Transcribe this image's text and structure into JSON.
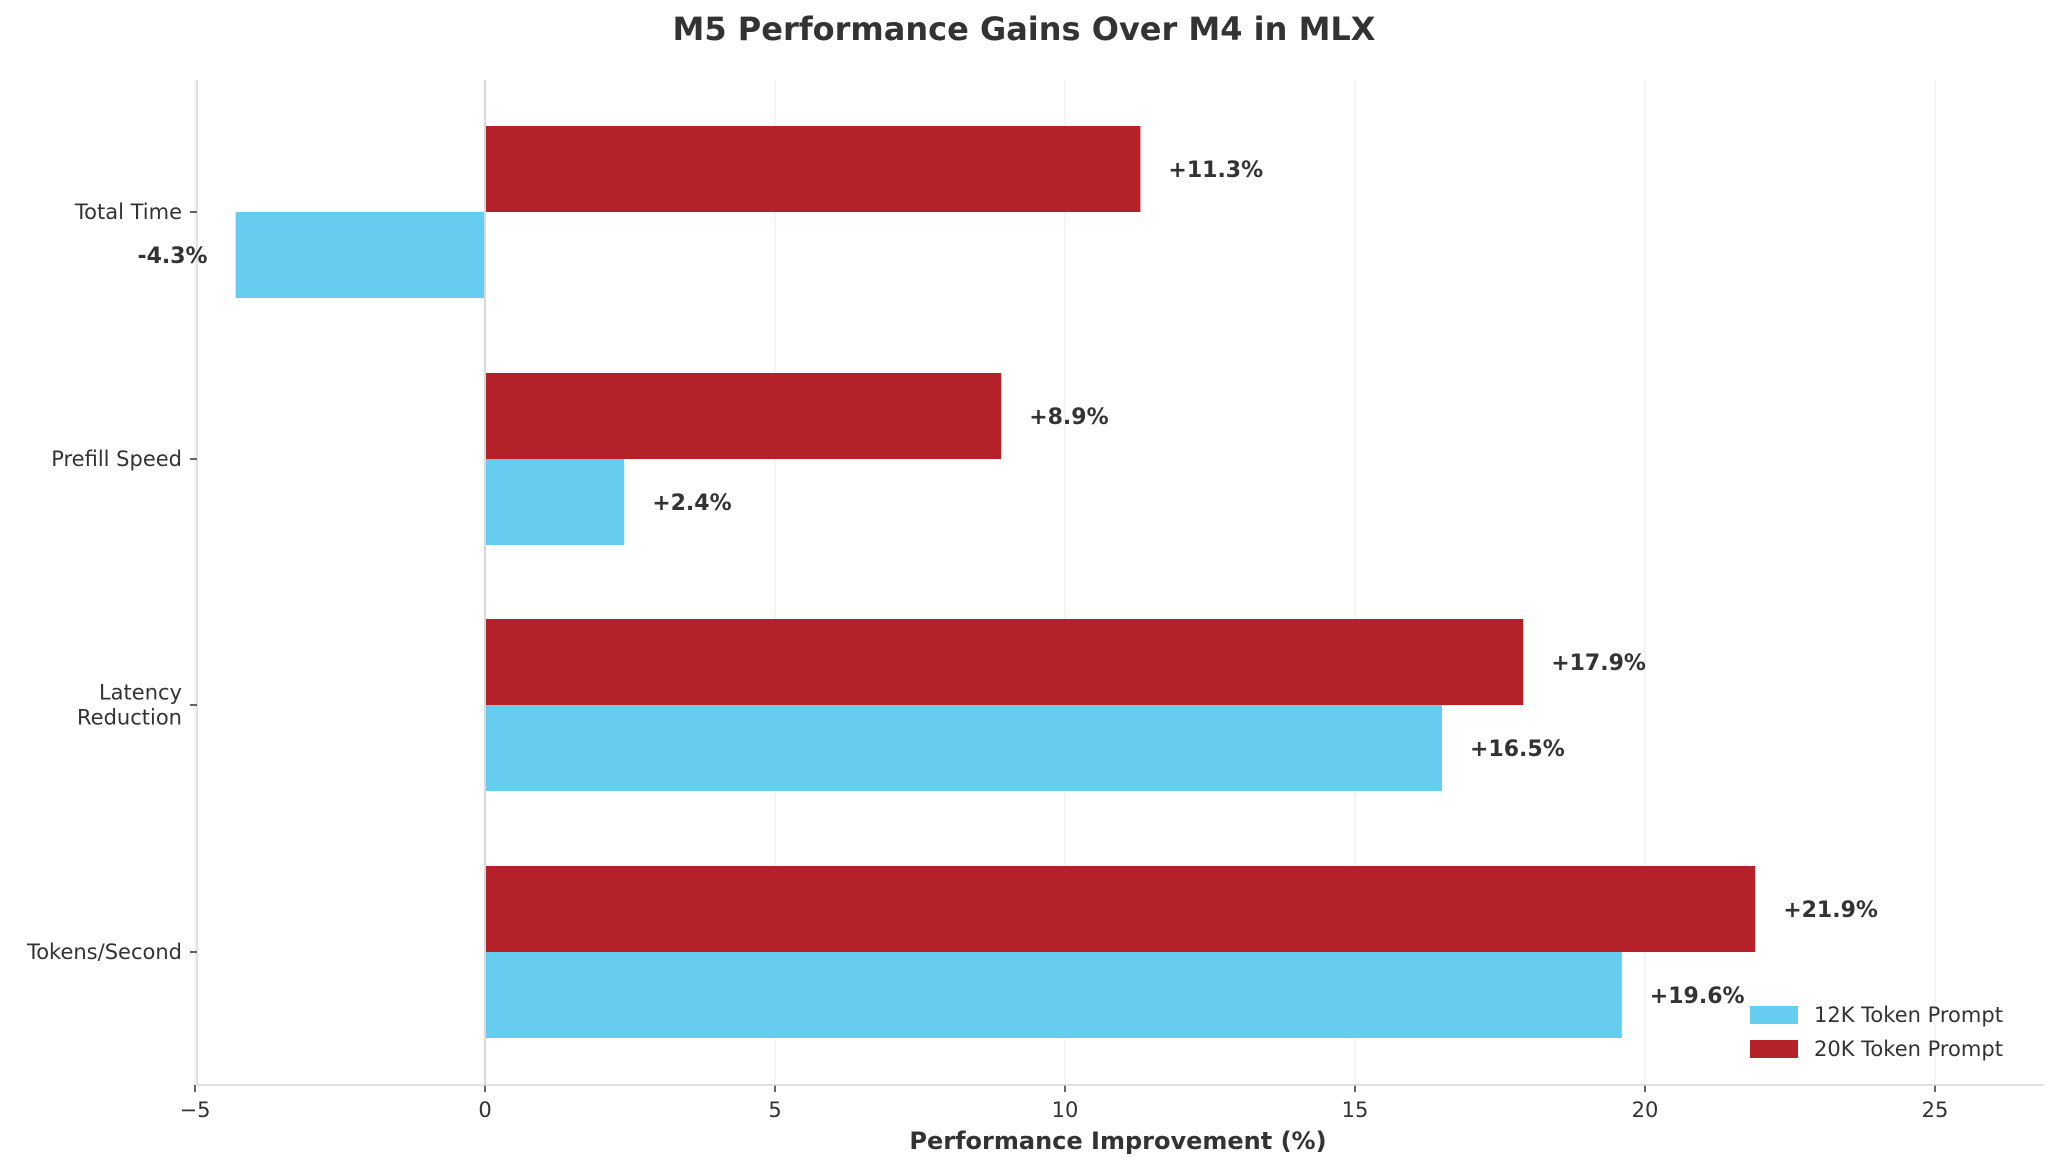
{
  "colors": {
    "series_12k": "#66CCF0",
    "series_20k": "#B52128",
    "grid": "#f0f0f0",
    "axis": "#d9d9d9",
    "text": "#333333"
  },
  "chart_data": {
    "type": "bar",
    "orientation": "horizontal",
    "title": "M5 Performance Gains Over M4 in MLX",
    "xlabel": "Performance Improvement (%)",
    "ylabel": "",
    "categories": [
      "Total Time",
      "Prefill Speed",
      "Latency\nReduction",
      "Tokens/Second"
    ],
    "series": [
      {
        "name": "12K Token Prompt",
        "values": [
          -4.3,
          2.4,
          16.5,
          19.6
        ],
        "labels": [
          "-4.3%",
          "+2.4%",
          "+16.5%",
          "+19.6%"
        ]
      },
      {
        "name": "20K Token Prompt",
        "values": [
          11.3,
          8.9,
          17.9,
          21.9
        ],
        "labels": [
          "+11.3%",
          "+8.9%",
          "+17.9%",
          "+21.9%"
        ]
      }
    ],
    "xlim": [
      -5,
      27
    ],
    "xticks": [
      -5,
      0,
      5,
      10,
      15,
      20,
      25
    ],
    "xtick_labels": [
      "−5",
      "0",
      "5",
      "10",
      "15",
      "20",
      "25"
    ],
    "grid": "vertical",
    "legend_position": "bottom-right"
  }
}
